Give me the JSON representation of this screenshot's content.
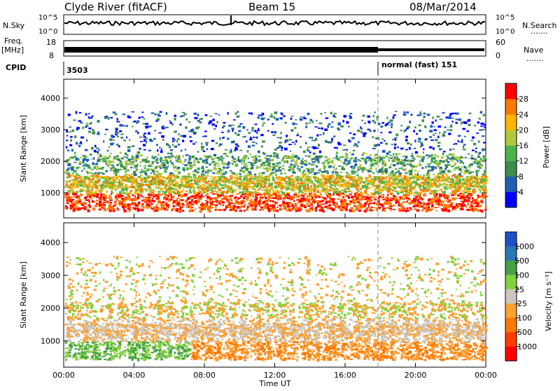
{
  "header": {
    "title": "Clyde River (fitACF)",
    "beam": "Beam 15",
    "date": "08/Mar/2014"
  },
  "strips": {
    "nsky_label": "N.Sky",
    "nsky_ticks": [
      "10^5",
      "10^0"
    ],
    "nsearch_label": "N.Search",
    "freq_label_1": "Freq.",
    "freq_label_2": "[MHz]",
    "freq_ticks": [
      "18",
      "8"
    ],
    "nave_ticks": [
      "60",
      "0"
    ],
    "nave_label": "Nave",
    "cpid_label": "CPID",
    "cpid_values": [
      "3503",
      "normal (fast) 151"
    ],
    "dotted_marker": "......."
  },
  "chart_data": [
    {
      "type": "heatmap",
      "ylabel": "Slant Range [km]",
      "xlabel": "",
      "y_ticks": [
        1000,
        2000,
        3000,
        4000
      ],
      "ylim": [
        200,
        4600
      ],
      "colorbar": {
        "label": "Power [dB]",
        "ticks": [
          4,
          8,
          12,
          16,
          20,
          24,
          28
        ],
        "colors": [
          "#0000ff",
          "#1e5fb4",
          "#3c8c4b",
          "#4bb44b",
          "#b4c83c",
          "#ffb400",
          "#ff7800",
          "#ff0000"
        ]
      }
    },
    {
      "type": "heatmap",
      "ylabel": "Slant Range [km]",
      "xlabel": "Time UT",
      "x_ticks": [
        "00:00",
        "04:00",
        "08:00",
        "12:00",
        "16:00",
        "20:00",
        "00:00"
      ],
      "y_ticks": [
        1000,
        2000,
        3000,
        4000
      ],
      "ylim": [
        200,
        4600
      ],
      "colorbar": {
        "label": "Velocity [m s⁻¹]",
        "ticks": [
          "1000",
          "500",
          "100",
          "25",
          "-25",
          "-100",
          "-500",
          "-1000"
        ],
        "colors": [
          "#1e50c8",
          "#2878b4",
          "#46a046",
          "#82d23c",
          "#c8c8c0",
          "#ffa032",
          "#ff7800",
          "#ff3c00",
          "#ff0000"
        ]
      }
    }
  ]
}
